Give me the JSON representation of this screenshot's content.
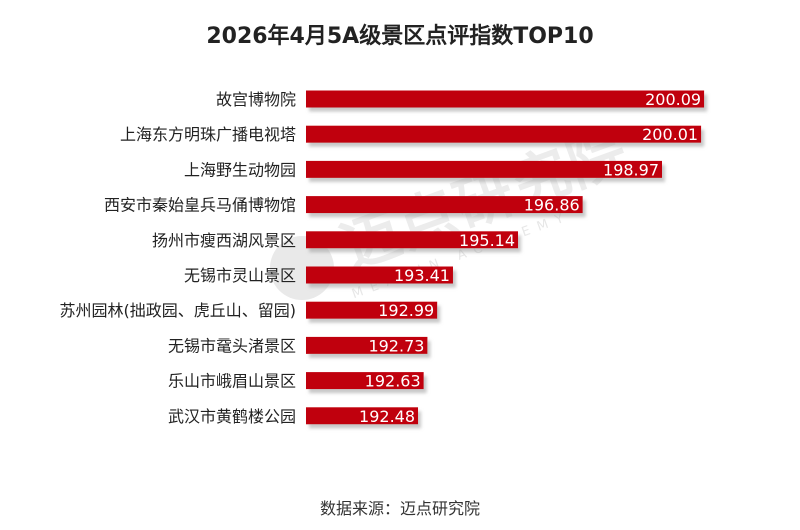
{
  "chart_data": {
    "type": "bar",
    "orientation": "horizontal",
    "title": "2026年4月5A级景区点评指数TOP10",
    "categories": [
      "故宫博物院",
      "上海东方明珠广播电视塔",
      "上海野生动物园",
      "西安市秦始皇兵马俑博物馆",
      "扬州市瘦西湖风景区",
      "无锡市灵山景区",
      "苏州园林(拙政园、虎丘山、留园)",
      "无锡市鼋头渚景区",
      "乐山市峨眉山景区",
      "武汉市黄鹤楼公园"
    ],
    "values": [
      200.09,
      200.01,
      198.97,
      196.86,
      195.14,
      193.41,
      192.99,
      192.73,
      192.63,
      192.48
    ],
    "value_labels": [
      "200.09",
      "200.01",
      "198.97",
      "196.86",
      "195.14",
      "193.41",
      "192.99",
      "192.73",
      "192.63",
      "192.48"
    ],
    "xlim": [
      189.5,
      200.3
    ],
    "grid": false,
    "legend": "none",
    "bar_color": "#c0000b",
    "shadow_color": "#9a9a9a"
  },
  "source_note": "数据来源：迈点研究院",
  "watermark": {
    "main": "迈点研究院",
    "sub": "MEADIN ACADEMY"
  }
}
